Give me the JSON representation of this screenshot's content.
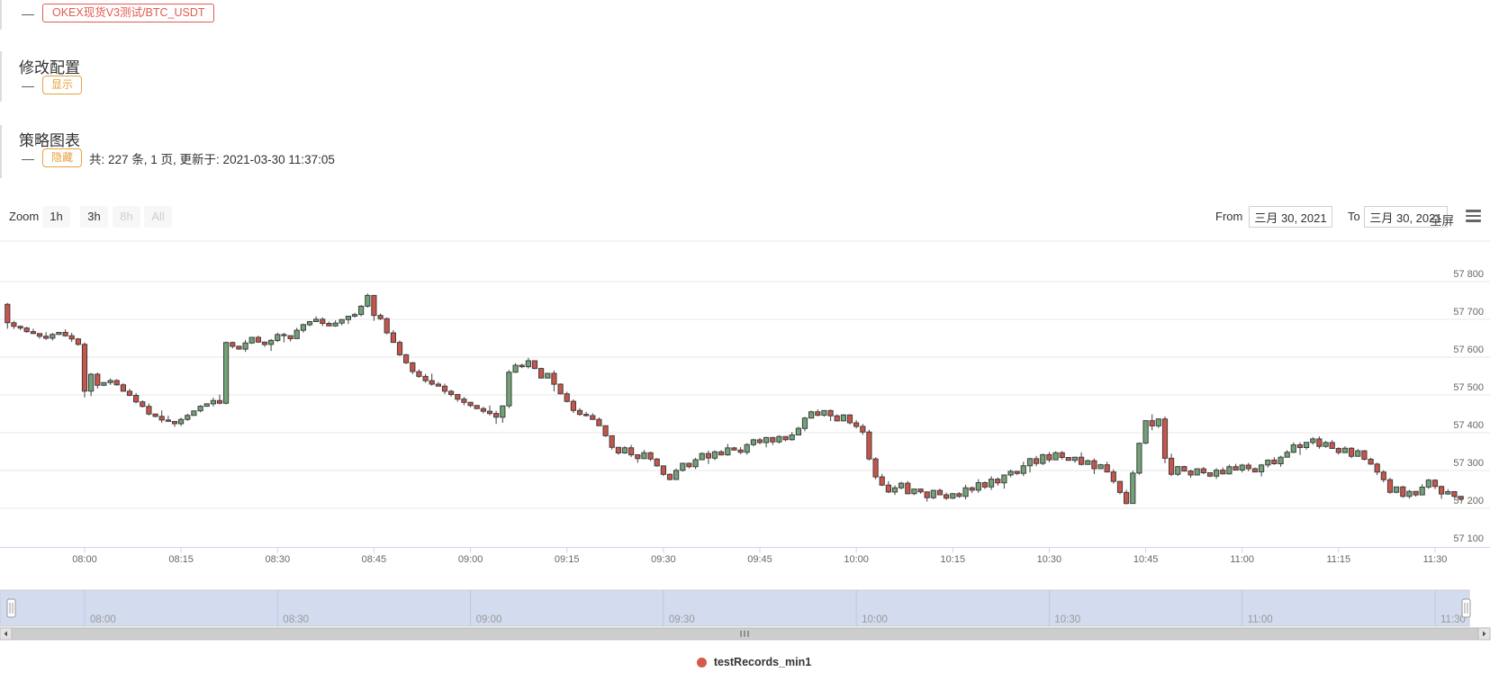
{
  "panel": {
    "sections": [
      {
        "collapse_marker": "—",
        "badge": "OKEX现货V3测试/BTC_USDT",
        "badge_color": "#e25a50"
      },
      {
        "title": "修改配置",
        "collapse_marker": "—",
        "badge": "显示",
        "badge_color": "#e6a23c"
      },
      {
        "title": "策略图表",
        "collapse_marker": "—",
        "badge": "隐藏",
        "badge_color": "#e6a23c",
        "info": "共: 227 条, 1 页, 更新于: 2021-03-30 11:37:05"
      }
    ]
  },
  "range_selector": {
    "zoom_label": "Zoom",
    "buttons": [
      {
        "label": "1h",
        "enabled": true
      },
      {
        "label": "3h",
        "enabled": true
      },
      {
        "label": "8h",
        "enabled": false
      },
      {
        "label": "All",
        "enabled": false
      }
    ],
    "from_label": "From",
    "from_value": "三月 30, 2021",
    "to_label": "To",
    "to_value": "三月 30, 2021",
    "fullscreen_label": "全屏"
  },
  "legend": {
    "label": "testRecords_min1",
    "dot_color": "#d65a4b"
  },
  "chart_data": {
    "type": "candlestick",
    "series": [
      {
        "name": "testRecords_min1",
        "color": "#d65a4b"
      }
    ],
    "point_count": 227,
    "interval_minutes": 1,
    "x_axis": {
      "start_time": "07:48",
      "end_time": "11:34",
      "tick_labels": [
        "08:00",
        "08:15",
        "08:30",
        "08:45",
        "09:00",
        "09:15",
        "09:30",
        "09:45",
        "10:00",
        "10:15",
        "10:30",
        "10:45",
        "11:00",
        "11:15",
        "11:30"
      ]
    },
    "y_axis": {
      "tick_values": [
        57100,
        57200,
        57300,
        57400,
        57500,
        57600,
        57700,
        57800
      ],
      "tick_labels": [
        "57 100",
        "57 200",
        "57 300",
        "57 400",
        "57 500",
        "57 600",
        "57 700",
        "57 800"
      ],
      "range": [
        57095,
        57910
      ]
    },
    "navigator_tick_labels": [
      "08:00",
      "08:30",
      "09:00",
      "09:30",
      "10:00",
      "10:30",
      "11:00",
      "11:30"
    ],
    "up_color": "#72a277",
    "down_color": "#c9544a",
    "outline_color": "#3f3f3f",
    "grid_color": "#e7e7e7",
    "axis_line_color": "#ccd6eb",
    "navigator_mask_color": "#d3dcef",
    "first_open": 57740,
    "close_anchors": [
      [
        0,
        57690
      ],
      [
        2,
        57678
      ],
      [
        4,
        57660
      ],
      [
        6,
        57652
      ],
      [
        8,
        57664
      ],
      [
        10,
        57650
      ],
      [
        11,
        57635
      ],
      [
        12,
        57512
      ],
      [
        13,
        57556
      ],
      [
        14,
        57528
      ],
      [
        16,
        57538
      ],
      [
        18,
        57512
      ],
      [
        20,
        57482
      ],
      [
        22,
        57452
      ],
      [
        24,
        57432
      ],
      [
        26,
        57425
      ],
      [
        28,
        57447
      ],
      [
        30,
        57470
      ],
      [
        32,
        57487
      ],
      [
        33,
        57480
      ],
      [
        34,
        57640
      ],
      [
        36,
        57622
      ],
      [
        38,
        57650
      ],
      [
        40,
        57632
      ],
      [
        42,
        57660
      ],
      [
        44,
        57650
      ],
      [
        46,
        57688
      ],
      [
        48,
        57700
      ],
      [
        50,
        57682
      ],
      [
        52,
        57702
      ],
      [
        54,
        57712
      ],
      [
        55,
        57736
      ],
      [
        56,
        57762
      ],
      [
        57,
        57712
      ],
      [
        58,
        57700
      ],
      [
        59,
        57662
      ],
      [
        60,
        57640
      ],
      [
        61,
        57605
      ],
      [
        63,
        57562
      ],
      [
        65,
        57540
      ],
      [
        67,
        57522
      ],
      [
        69,
        57500
      ],
      [
        71,
        57482
      ],
      [
        73,
        57466
      ],
      [
        75,
        57450
      ],
      [
        76,
        57440
      ],
      [
        77,
        57470
      ],
      [
        78,
        57560
      ],
      [
        79,
        57580
      ],
      [
        80,
        57574
      ],
      [
        81,
        57590
      ],
      [
        82,
        57570
      ],
      [
        83,
        57546
      ],
      [
        84,
        57556
      ],
      [
        85,
        57530
      ],
      [
        86,
        57502
      ],
      [
        87,
        57482
      ],
      [
        88,
        57460
      ],
      [
        89,
        57450
      ],
      [
        90,
        57446
      ],
      [
        91,
        57436
      ],
      [
        92,
        57420
      ],
      [
        93,
        57392
      ],
      [
        94,
        57362
      ],
      [
        95,
        57346
      ],
      [
        96,
        57360
      ],
      [
        97,
        57342
      ],
      [
        98,
        57330
      ],
      [
        99,
        57346
      ],
      [
        100,
        57330
      ],
      [
        101,
        57310
      ],
      [
        102,
        57292
      ],
      [
        103,
        57276
      ],
      [
        104,
        57300
      ],
      [
        105,
        57320
      ],
      [
        106,
        57312
      ],
      [
        107,
        57330
      ],
      [
        108,
        57346
      ],
      [
        109,
        57332
      ],
      [
        110,
        57350
      ],
      [
        111,
        57342
      ],
      [
        112,
        57360
      ],
      [
        113,
        57352
      ],
      [
        114,
        57346
      ],
      [
        115,
        57366
      ],
      [
        116,
        57380
      ],
      [
        117,
        57372
      ],
      [
        118,
        57386
      ],
      [
        119,
        57376
      ],
      [
        120,
        57392
      ],
      [
        121,
        57382
      ],
      [
        122,
        57396
      ],
      [
        123,
        57412
      ],
      [
        124,
        57440
      ],
      [
        125,
        57456
      ],
      [
        126,
        57446
      ],
      [
        127,
        57460
      ],
      [
        128,
        57446
      ],
      [
        129,
        57432
      ],
      [
        130,
        57446
      ],
      [
        131,
        57426
      ],
      [
        132,
        57418
      ],
      [
        133,
        57400
      ],
      [
        134,
        57330
      ],
      [
        135,
        57285
      ],
      [
        136,
        57262
      ],
      [
        137,
        57245
      ],
      [
        138,
        57252
      ],
      [
        139,
        57266
      ],
      [
        140,
        57236
      ],
      [
        141,
        57252
      ],
      [
        142,
        57242
      ],
      [
        143,
        57230
      ],
      [
        144,
        57246
      ],
      [
        145,
        57236
      ],
      [
        146,
        57226
      ],
      [
        147,
        57240
      ],
      [
        148,
        57232
      ],
      [
        149,
        57256
      ],
      [
        150,
        57246
      ],
      [
        151,
        57266
      ],
      [
        152,
        57256
      ],
      [
        153,
        57276
      ],
      [
        154,
        57266
      ],
      [
        155,
        57286
      ],
      [
        156,
        57300
      ],
      [
        157,
        57292
      ],
      [
        158,
        57310
      ],
      [
        159,
        57330
      ],
      [
        160,
        57320
      ],
      [
        161,
        57340
      ],
      [
        162,
        57330
      ],
      [
        163,
        57346
      ],
      [
        164,
        57336
      ],
      [
        165,
        57326
      ],
      [
        166,
        57336
      ],
      [
        167,
        57316
      ],
      [
        168,
        57326
      ],
      [
        169,
        57306
      ],
      [
        170,
        57316
      ],
      [
        171,
        57296
      ],
      [
        172,
        57270
      ],
      [
        173,
        57242
      ],
      [
        174,
        57215
      ],
      [
        175,
        57292
      ],
      [
        176,
        57370
      ],
      [
        177,
        57432
      ],
      [
        178,
        57420
      ],
      [
        179,
        57436
      ],
      [
        180,
        57330
      ],
      [
        181,
        57292
      ],
      [
        182,
        57312
      ],
      [
        183,
        57300
      ],
      [
        184,
        57290
      ],
      [
        185,
        57306
      ],
      [
        186,
        57296
      ],
      [
        187,
        57286
      ],
      [
        188,
        57300
      ],
      [
        189,
        57292
      ],
      [
        190,
        57310
      ],
      [
        191,
        57300
      ],
      [
        192,
        57316
      ],
      [
        193,
        57306
      ],
      [
        194,
        57296
      ],
      [
        195,
        57312
      ],
      [
        196,
        57326
      ],
      [
        197,
        57316
      ],
      [
        198,
        57336
      ],
      [
        199,
        57350
      ],
      [
        200,
        57370
      ],
      [
        201,
        57360
      ],
      [
        202,
        57376
      ],
      [
        203,
        57386
      ],
      [
        204,
        57366
      ],
      [
        205,
        57376
      ],
      [
        206,
        57356
      ],
      [
        207,
        57346
      ],
      [
        208,
        57360
      ],
      [
        209,
        57340
      ],
      [
        210,
        57350
      ],
      [
        211,
        57330
      ],
      [
        212,
        57316
      ],
      [
        213,
        57296
      ],
      [
        214,
        57276
      ],
      [
        215,
        57240
      ],
      [
        216,
        57256
      ],
      [
        217,
        57230
      ],
      [
        218,
        57246
      ],
      [
        219,
        57236
      ],
      [
        220,
        57256
      ],
      [
        221,
        57276
      ],
      [
        222,
        57260
      ],
      [
        223,
        57236
      ],
      [
        224,
        57246
      ],
      [
        225,
        57230
      ],
      [
        226,
        57222
      ]
    ]
  }
}
